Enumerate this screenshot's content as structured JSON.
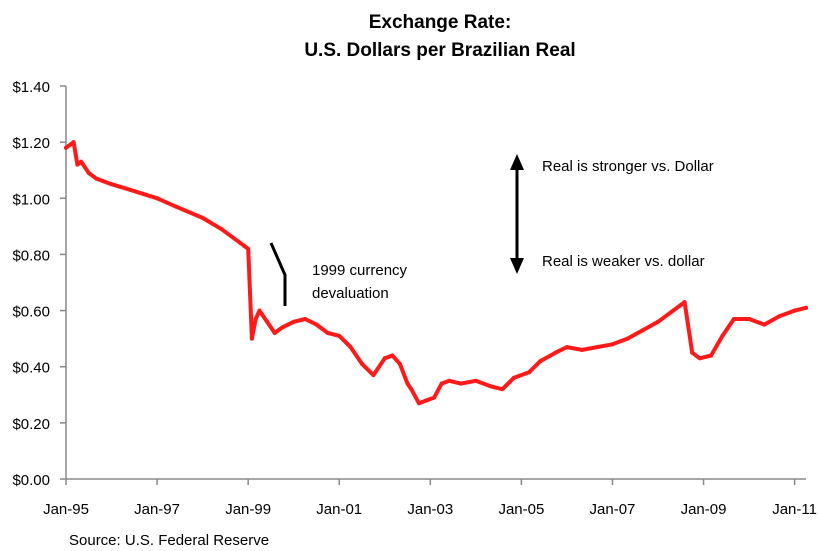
{
  "chart_data": {
    "type": "line",
    "title": [
      "Exchange Rate:",
      "U.S. Dollars per Brazilian Real"
    ],
    "xlabel": "",
    "ylabel": "",
    "ylim": [
      0,
      1.4
    ],
    "xlim": [
      "1995-01",
      "2011-04"
    ],
    "y_ticks": [
      {
        "value": 0.0,
        "label": "$0.00"
      },
      {
        "value": 0.2,
        "label": "$0.20"
      },
      {
        "value": 0.4,
        "label": "$0.40"
      },
      {
        "value": 0.6,
        "label": "$0.60"
      },
      {
        "value": 0.8,
        "label": "$0.80"
      },
      {
        "value": 1.0,
        "label": "$1.00"
      },
      {
        "value": 1.2,
        "label": "$1.20"
      },
      {
        "value": 1.4,
        "label": "$1.40"
      }
    ],
    "x_ticks": [
      {
        "value": "1995-01",
        "label": "Jan-95"
      },
      {
        "value": "1997-01",
        "label": "Jan-97"
      },
      {
        "value": "1999-01",
        "label": "Jan-99"
      },
      {
        "value": "2001-01",
        "label": "Jan-01"
      },
      {
        "value": "2003-01",
        "label": "Jan-03"
      },
      {
        "value": "2005-01",
        "label": "Jan-05"
      },
      {
        "value": "2007-01",
        "label": "Jan-07"
      },
      {
        "value": "2009-01",
        "label": "Jan-09"
      },
      {
        "value": "2011-01",
        "label": "Jan-11"
      }
    ],
    "grid": false,
    "series": [
      {
        "color": "#ff1a1a",
        "x": [
          "1995-01",
          "1995-03",
          "1995-04",
          "1995-05",
          "1995-07",
          "1995-09",
          "1996-01",
          "1996-06",
          "1997-01",
          "1997-06",
          "1998-01",
          "1998-06",
          "1998-11",
          "1998-12",
          "1999-01",
          "1999-02",
          "1999-03",
          "1999-04",
          "1999-06",
          "1999-08",
          "1999-10",
          "2000-01",
          "2000-04",
          "2000-07",
          "2000-10",
          "2001-01",
          "2001-04",
          "2001-07",
          "2001-10",
          "2002-01",
          "2002-03",
          "2002-05",
          "2002-07",
          "2002-08",
          "2002-10",
          "2002-12",
          "2003-02",
          "2003-04",
          "2003-06",
          "2003-09",
          "2004-01",
          "2004-05",
          "2004-08",
          "2004-11",
          "2005-03",
          "2005-06",
          "2005-10",
          "2006-01",
          "2006-05",
          "2006-09",
          "2007-01",
          "2007-05",
          "2007-09",
          "2008-01",
          "2008-05",
          "2008-08",
          "2008-10",
          "2008-12",
          "2009-03",
          "2009-06",
          "2009-09",
          "2010-01",
          "2010-05",
          "2010-09",
          "2011-01",
          "2011-04"
        ],
        "values": [
          1.18,
          1.2,
          1.12,
          1.13,
          1.09,
          1.07,
          1.05,
          1.03,
          1.0,
          0.97,
          0.93,
          0.89,
          0.84,
          0.83,
          0.82,
          0.5,
          0.57,
          0.6,
          0.56,
          0.52,
          0.54,
          0.56,
          0.57,
          0.55,
          0.52,
          0.51,
          0.47,
          0.41,
          0.37,
          0.43,
          0.44,
          0.41,
          0.34,
          0.32,
          0.27,
          0.28,
          0.29,
          0.34,
          0.35,
          0.34,
          0.35,
          0.33,
          0.32,
          0.36,
          0.38,
          0.42,
          0.45,
          0.47,
          0.46,
          0.47,
          0.48,
          0.5,
          0.53,
          0.56,
          0.6,
          0.63,
          0.45,
          0.43,
          0.44,
          0.51,
          0.57,
          0.57,
          0.55,
          0.58,
          0.6,
          0.61
        ]
      }
    ],
    "annotations": {
      "devaluation": [
        "1999 currency",
        "devaluation"
      ],
      "stronger": "Real is stronger vs. Dollar",
      "weaker": "Real is weaker vs. dollar"
    },
    "source": "Source:  U.S. Federal Reserve"
  }
}
